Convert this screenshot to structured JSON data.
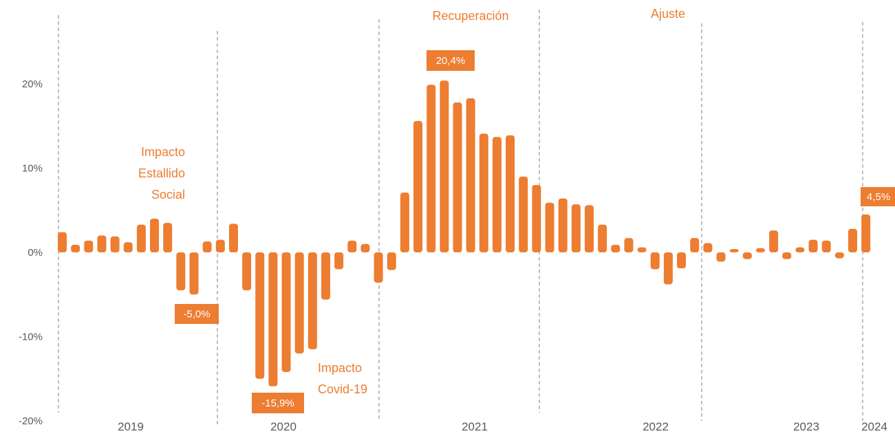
{
  "colors": {
    "bar": "#ED7D31",
    "text": "#595959",
    "separator": "#7f7f7f"
  },
  "chart_data": {
    "type": "bar",
    "title": "",
    "xlabel": "",
    "ylabel": "",
    "ylim": [
      -20,
      27
    ],
    "y_ticks": [
      {
        "value": 20,
        "label": "20%"
      },
      {
        "value": 10,
        "label": "10%"
      },
      {
        "value": 0,
        "label": "0%"
      },
      {
        "value": -10,
        "label": "-10%"
      },
      {
        "value": -20,
        "label": "-20%"
      }
    ],
    "years": [
      {
        "label": "2019",
        "start": 0,
        "count": 12
      },
      {
        "label": "2020",
        "start": 12,
        "count": 12
      },
      {
        "label": "2021",
        "start": 24,
        "count": 12
      },
      {
        "label": "2022",
        "start": 36,
        "count": 12
      },
      {
        "label": "2023",
        "start": 48,
        "count": 12
      },
      {
        "label": "2024",
        "start": 60,
        "count": 2
      }
    ],
    "values": [
      2.4,
      0.9,
      1.4,
      2.0,
      1.9,
      1.2,
      3.3,
      4.0,
      3.5,
      -4.5,
      -5.0,
      1.3,
      1.5,
      3.4,
      -4.5,
      -15.0,
      -15.9,
      -14.2,
      -12.0,
      -11.5,
      -5.6,
      -2.0,
      1.4,
      1.0,
      -3.6,
      -2.1,
      7.1,
      15.6,
      19.9,
      20.4,
      17.8,
      18.3,
      14.1,
      13.7,
      13.9,
      9.0,
      8.0,
      5.9,
      6.4,
      5.7,
      5.6,
      3.3,
      0.9,
      1.7,
      0.6,
      -2.0,
      -3.8,
      -1.9,
      1.7,
      1.1,
      -1.1,
      0.4,
      -0.8,
      0.5,
      2.6,
      -0.8,
      0.6,
      1.5,
      1.4,
      -0.7,
      2.8,
      4.5
    ],
    "data_labels": [
      {
        "index": 10,
        "text": "-5,0%"
      },
      {
        "index": 16,
        "text": "-15,9%"
      },
      {
        "index": 29,
        "text": "20,4%"
      },
      {
        "index": 61,
        "text": "4,5%"
      }
    ],
    "annotations": [
      {
        "lines": [
          "Impacto",
          "Estallido",
          "Social"
        ]
      },
      {
        "lines": [
          "Impacto",
          "Covid-19"
        ]
      },
      {
        "lines": [
          "Recuperación"
        ]
      },
      {
        "lines": [
          "Ajuste"
        ]
      }
    ],
    "separators": 7,
    "grid": false,
    "legend": "none"
  }
}
